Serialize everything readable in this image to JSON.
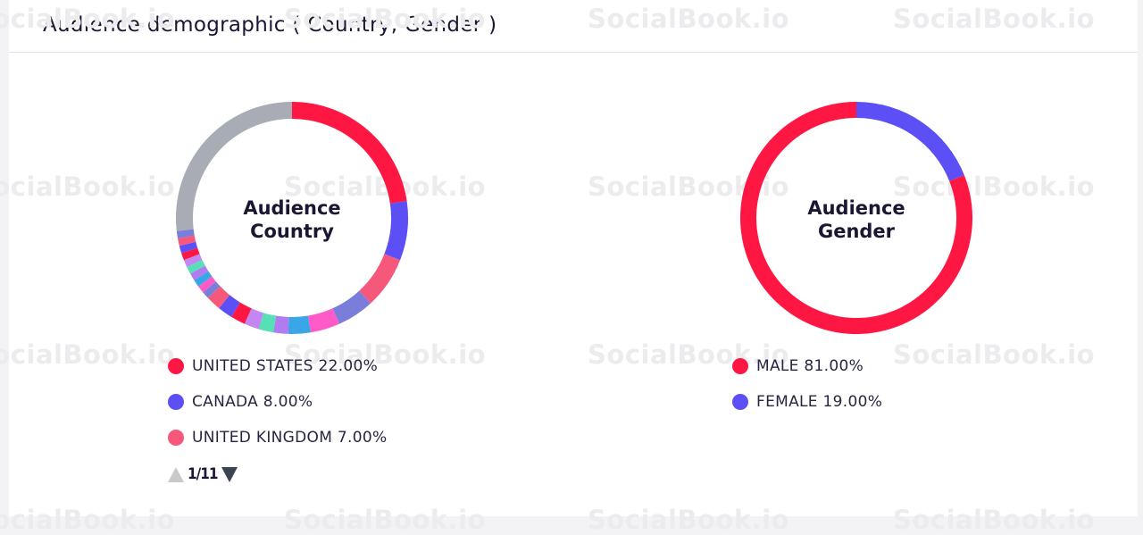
{
  "header": {
    "title": "Audience demographic ( Country, Gender )"
  },
  "watermark": "SocialBook.io",
  "chart_data": [
    {
      "type": "pie",
      "title": "Audience Country",
      "center_label": [
        "Audience",
        "Country"
      ],
      "slices": [
        {
          "name": "UNITED STATES",
          "value": 22.0,
          "color": "#ff1744"
        },
        {
          "name": "CANADA",
          "value": 8.0,
          "color": "#5b4ff5"
        },
        {
          "name": "UNITED KINGDOM",
          "value": 7.0,
          "color": "#f5587b"
        },
        {
          "name": "",
          "value": 5.0,
          "color": "#7b7ddb"
        },
        {
          "name": "",
          "value": 4.0,
          "color": "#ff5bc8"
        },
        {
          "name": "",
          "value": 3.0,
          "color": "#3aa6e8"
        },
        {
          "name": "",
          "value": 2.0,
          "color": "#b27cf0"
        },
        {
          "name": "",
          "value": 2.0,
          "color": "#55e0b5"
        },
        {
          "name": "",
          "value": 2.0,
          "color": "#c487f2"
        },
        {
          "name": "",
          "value": 2.0,
          "color": "#ff1744"
        },
        {
          "name": "",
          "value": 2.0,
          "color": "#5b4ff5"
        },
        {
          "name": "",
          "value": 2.0,
          "color": "#f5587b"
        },
        {
          "name": "",
          "value": 1.0,
          "color": "#7b7ddb"
        },
        {
          "name": "",
          "value": 1.0,
          "color": "#ff5bc8"
        },
        {
          "name": "",
          "value": 1.0,
          "color": "#3aa6e8"
        },
        {
          "name": "",
          "value": 1.0,
          "color": "#b27cf0"
        },
        {
          "name": "",
          "value": 1.0,
          "color": "#55e0b5"
        },
        {
          "name": "",
          "value": 1.0,
          "color": "#c487f2"
        },
        {
          "name": "",
          "value": 1.0,
          "color": "#ff1744"
        },
        {
          "name": "",
          "value": 1.0,
          "color": "#5b4ff5"
        },
        {
          "name": "",
          "value": 1.0,
          "color": "#f5587b"
        },
        {
          "name": "",
          "value": 1.0,
          "color": "#7b7ddb"
        },
        {
          "name": "",
          "value": 26.0,
          "color": "#a8adb5"
        }
      ],
      "legend": [
        {
          "label": "UNITED STATES 22.00%",
          "color": "#ff1744"
        },
        {
          "label": "CANADA 8.00%",
          "color": "#5b4ff5"
        },
        {
          "label": "UNITED KINGDOM 7.00%",
          "color": "#f5587b"
        }
      ],
      "pager": {
        "text": "1/11"
      }
    },
    {
      "type": "pie",
      "title": "Audience Gender",
      "center_label": [
        "Audience",
        "Gender"
      ],
      "slices": [
        {
          "name": "FEMALE",
          "value": 19.0,
          "color": "#5b4ff5"
        },
        {
          "name": "MALE",
          "value": 81.0,
          "color": "#ff1744"
        }
      ],
      "legend": [
        {
          "label": "MALE 81.00%",
          "color": "#ff1744"
        },
        {
          "label": "FEMALE 19.00%",
          "color": "#5b4ff5"
        }
      ]
    }
  ]
}
